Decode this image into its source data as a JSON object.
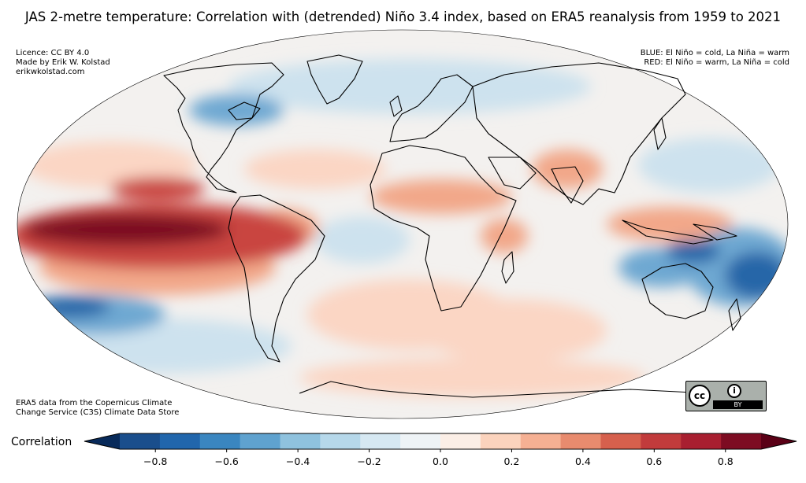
{
  "title": "JAS 2-metre temperature: Correlation with (detrended) Niño 3.4 index, based on ERA5 reanalysis from 1959 to 2021",
  "credits": {
    "licence": "Licence: CC BY 4.0",
    "author": "Made by Erik W. Kolstad",
    "site": "erikwkolstad.com"
  },
  "legend_notes": {
    "blue": "BLUE: El Niño = cold, La Niña = warm",
    "red": "RED: El Niño = warm, La Niña = cold"
  },
  "data_source": {
    "line1": "ERA5 data from the Copernicus Climate",
    "line2": "Change Service (C3S) Climate Data Store"
  },
  "license_badge": {
    "cc": "cc",
    "by_icon": "i",
    "by": "BY"
  },
  "colorbar": {
    "label": "Correlation",
    "min": -0.9,
    "max": 0.9,
    "ticks": [
      "−0.8",
      "−0.6",
      "−0.4",
      "−0.2",
      "0.0",
      "0.2",
      "0.4",
      "0.6",
      "0.8"
    ],
    "tick_values": [
      -0.8,
      -0.6,
      -0.4,
      -0.2,
      0.0,
      0.2,
      0.4,
      0.6,
      0.8
    ],
    "colors": [
      "#1a4e8c",
      "#2166ac",
      "#3a86c0",
      "#5fa2cf",
      "#8fc2de",
      "#b6d8ea",
      "#d6e8f2",
      "#eef3f6",
      "#fbeee6",
      "#fbd3bd",
      "#f5b093",
      "#e88b6e",
      "#d6604d",
      "#c13b3c",
      "#a81f30",
      "#7d0c22"
    ],
    "under_color": "#082a5a",
    "over_color": "#5a0016"
  },
  "map_colors": {
    "ocean_neutral": "#f3f1ef",
    "strong_warm": "#7d0c22",
    "warm": "#c9443f",
    "mild_warm": "#f2a789",
    "light_warm": "#fbd6c4",
    "light_cold": "#cde2ee",
    "cold": "#6ea8d2",
    "strong_cold": "#2566a8",
    "coast": "#000000"
  }
}
